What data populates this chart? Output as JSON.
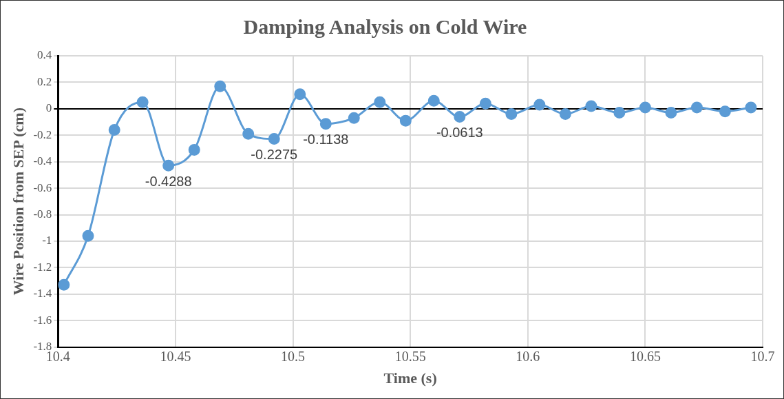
{
  "chart_data": {
    "type": "line",
    "title": "Damping Analysis on Cold Wire",
    "xlabel": "Time (s)",
    "ylabel": "Wire Position from SEP (cm)",
    "x": [
      10.4025,
      10.4128,
      10.424,
      10.436,
      10.447,
      10.458,
      10.469,
      10.481,
      10.492,
      10.503,
      10.514,
      10.526,
      10.537,
      10.548,
      10.56,
      10.571,
      10.582,
      10.593,
      10.605,
      10.616,
      10.627,
      10.639,
      10.65,
      10.661,
      10.672,
      10.684,
      10.695
    ],
    "series": [
      {
        "color": "#5b9bd5",
        "values": [
          -1.33,
          -0.96,
          -0.16,
          0.05,
          -0.4288,
          -0.31,
          0.17,
          -0.19,
          -0.2275,
          0.11,
          -0.1138,
          -0.07,
          0.05,
          -0.09,
          0.06,
          -0.0613,
          0.04,
          -0.04,
          0.03,
          -0.04,
          0.02,
          -0.03,
          0.01,
          -0.03,
          0.01,
          -0.02,
          0.01
        ],
        "value_labels": [
          null,
          null,
          null,
          null,
          "-0.4288",
          null,
          null,
          null,
          "-0.2275",
          null,
          "-0.1138",
          null,
          null,
          null,
          null,
          "-0.0613",
          null,
          null,
          null,
          null,
          null,
          null,
          null,
          null,
          null,
          null,
          null
        ]
      }
    ],
    "xlim": [
      10.4,
      10.7
    ],
    "xticks": [
      10.4,
      10.45,
      10.5,
      10.55,
      10.6,
      10.65,
      10.7
    ],
    "ylim": [
      -1.8,
      0.4
    ],
    "yticks": [
      -1.8,
      -1.6,
      -1.4,
      -1.2,
      -1,
      -0.8,
      -0.6,
      -0.4,
      -0.2,
      0,
      0.2,
      0.4
    ],
    "grid": true,
    "legend": false,
    "marker": "circle",
    "line_style": "solid"
  }
}
